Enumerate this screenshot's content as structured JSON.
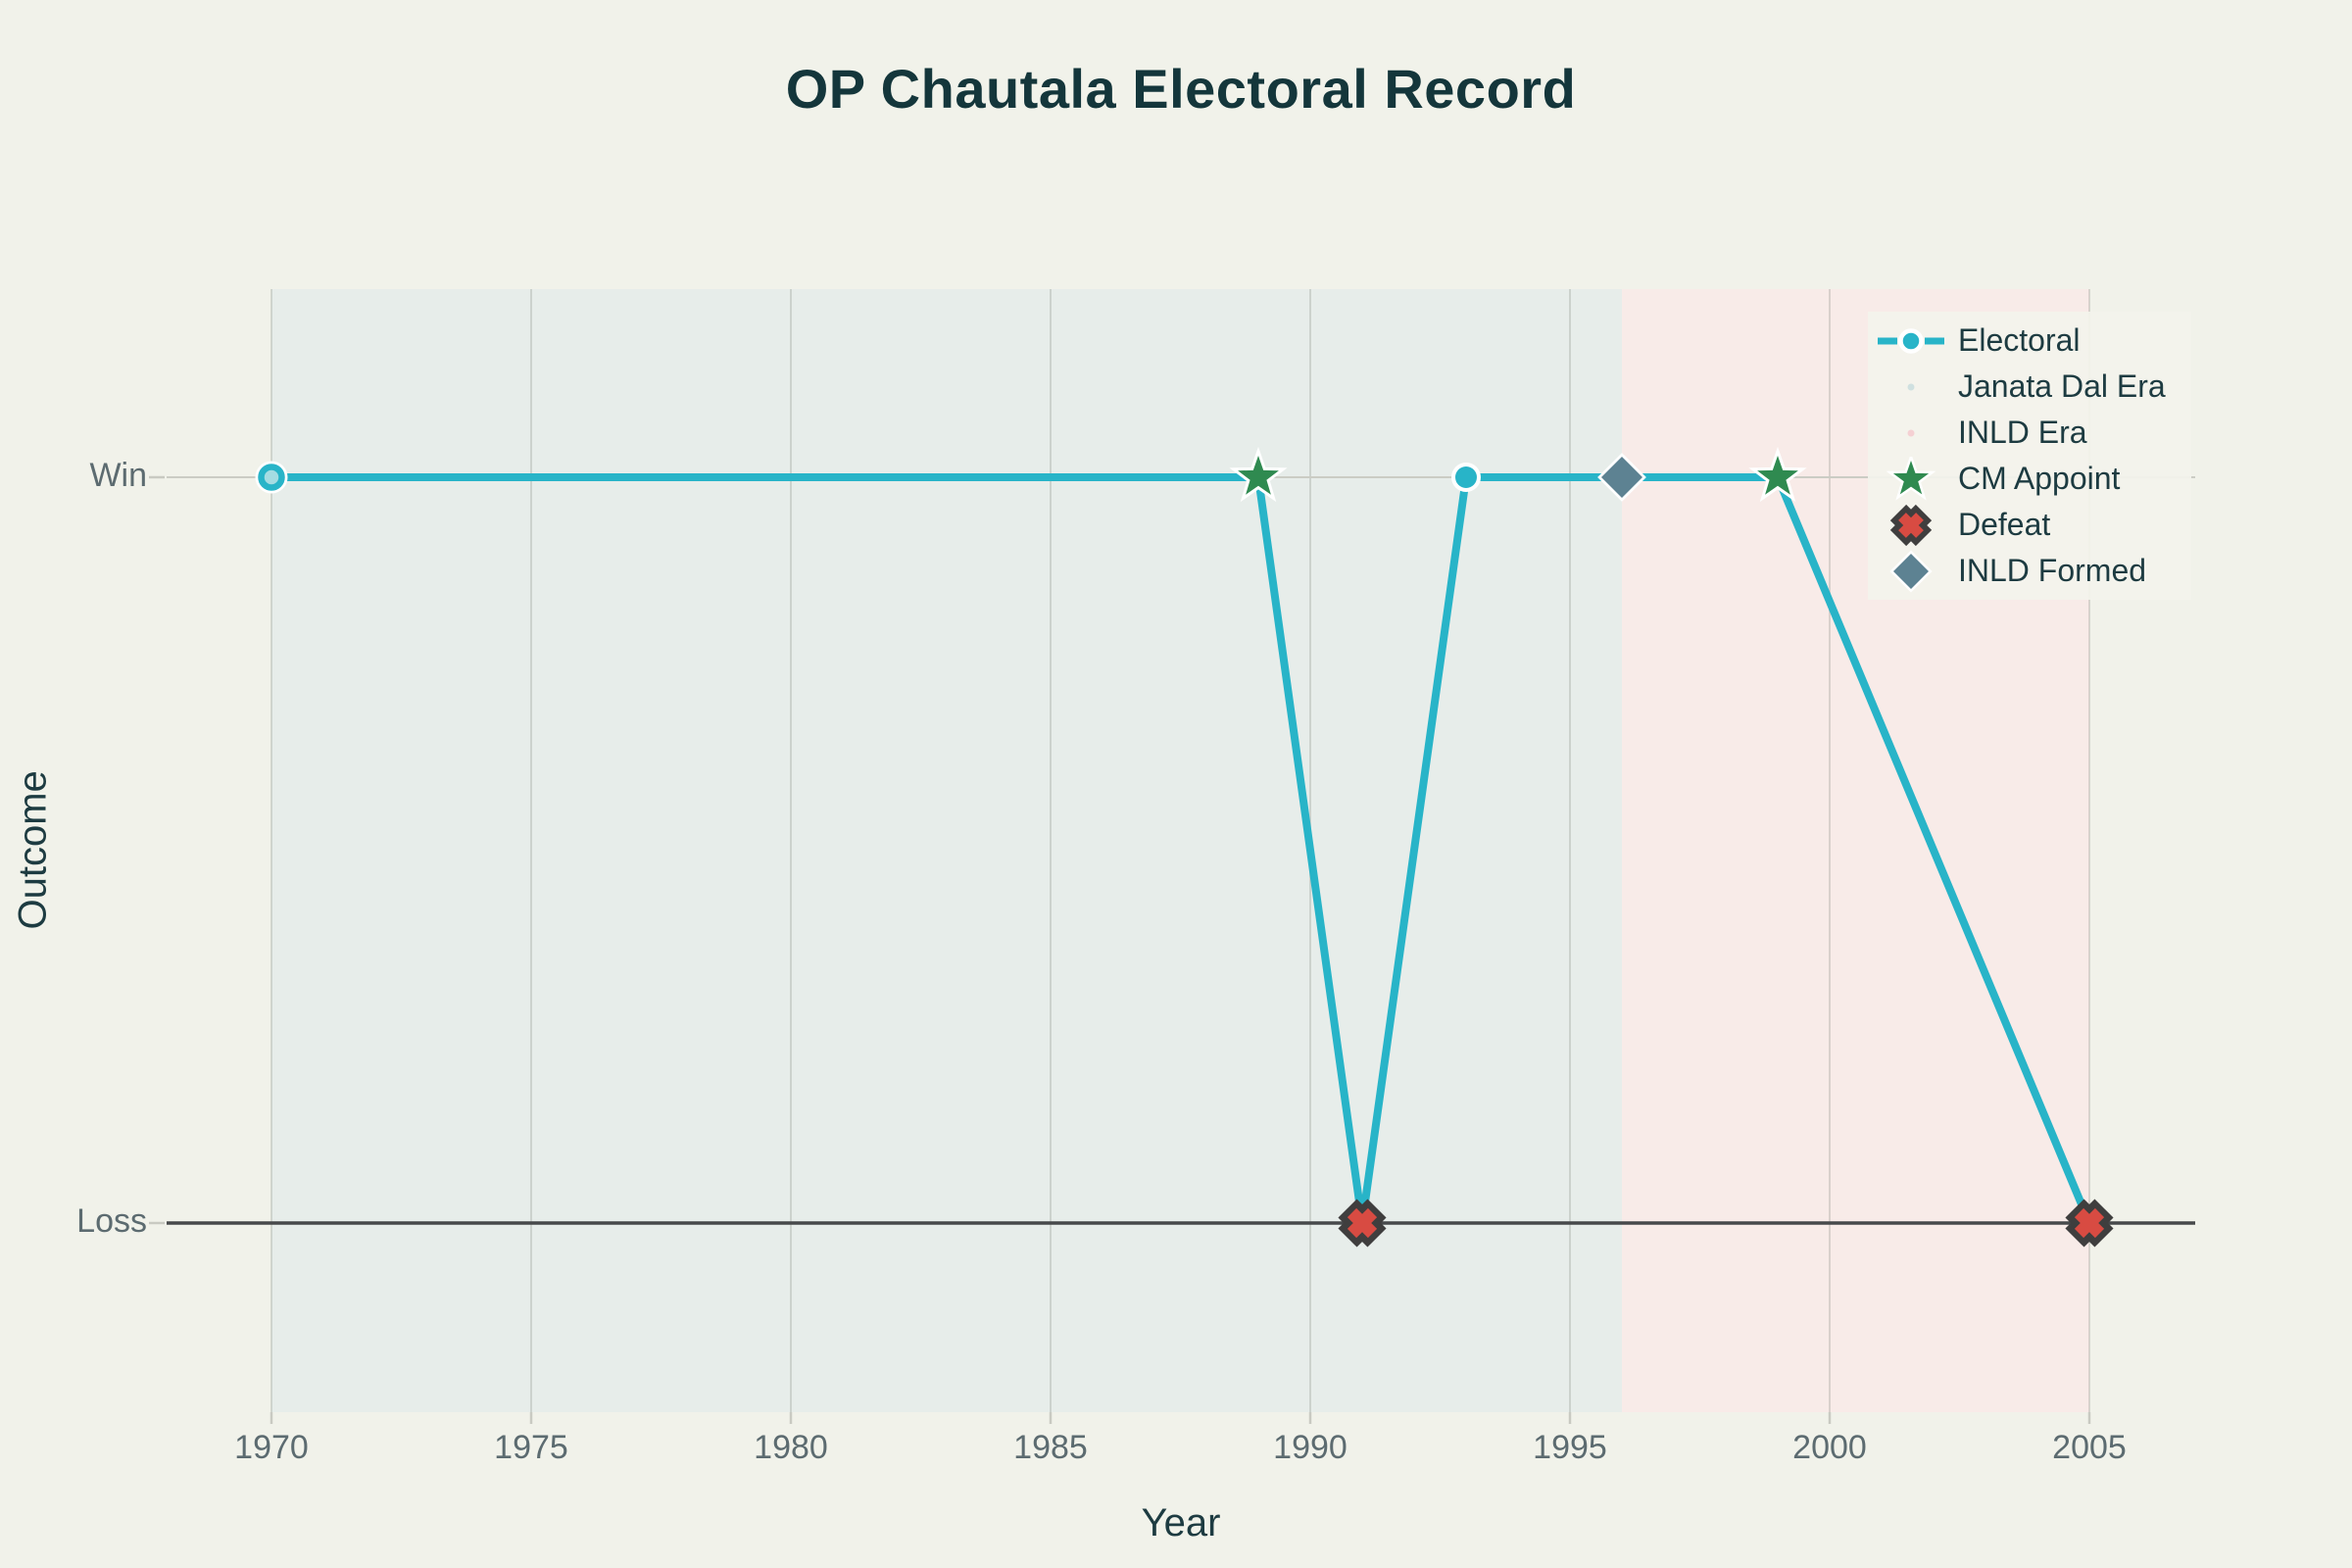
{
  "chart_data": {
    "type": "line",
    "title": "OP Chautala Electoral Record",
    "xlabel": "Year",
    "ylabel": "Outcome",
    "x_ticks": [
      1970,
      1975,
      1980,
      1985,
      1990,
      1995,
      2000,
      2005
    ],
    "y_ticks": [
      "Win",
      "Loss"
    ],
    "xlim": [
      1968,
      2007
    ],
    "grid": true,
    "legend_position": "upper right",
    "series": [
      {
        "name": "Electoral",
        "color": "#28b4c8",
        "points": [
          {
            "year": 1970,
            "outcome": "Win"
          },
          {
            "year": 1989,
            "outcome": "Win"
          },
          {
            "year": 1991,
            "outcome": "Loss"
          },
          {
            "year": 1993,
            "outcome": "Win"
          },
          {
            "year": 1999,
            "outcome": "Win"
          },
          {
            "year": 2005,
            "outcome": "Loss"
          }
        ]
      }
    ],
    "point_markers": [
      {
        "year": 1970,
        "outcome": "Win",
        "style": "open-circle"
      },
      {
        "year": 1993,
        "outcome": "Win",
        "style": "dot"
      }
    ],
    "annotations": [
      {
        "label": "CM Appoint",
        "marker": "star",
        "color": "#2f8a50",
        "year": 1989,
        "outcome": "Win"
      },
      {
        "label": "Defeat",
        "marker": "cross",
        "color": "#d84b42",
        "outline": "#3f3e3e",
        "year": 1991,
        "outcome": "Loss"
      },
      {
        "label": "INLD Formed",
        "marker": "diamond",
        "color": "#5d8292",
        "year": 1996,
        "outcome": "Win"
      },
      {
        "label": "CM Appoint",
        "marker": "star",
        "color": "#2f8a50",
        "year": 1999,
        "outcome": "Win"
      },
      {
        "label": "Defeat",
        "marker": "cross",
        "color": "#d84b42",
        "outline": "#3f3e3e",
        "year": 2005,
        "outcome": "Loss"
      }
    ],
    "eras": [
      {
        "name": "Janata Dal Era",
        "start": 1970,
        "end": 1996,
        "color": "#e7edea"
      },
      {
        "name": "INLD Era",
        "start": 1996,
        "end": 2005,
        "color": "#f8ebe8"
      }
    ]
  },
  "legend": {
    "items": [
      {
        "label": "Electoral",
        "marker": "line-dot",
        "color": "#28b4c8"
      },
      {
        "label": "Janata Dal Era",
        "marker": "small-dot",
        "color": "#cfe0e0"
      },
      {
        "label": "INLD Era",
        "marker": "small-dot",
        "color": "#f5d0d3"
      },
      {
        "label": "CM Appoint",
        "marker": "star",
        "color": "#2f8a50"
      },
      {
        "label": "Defeat",
        "marker": "cross",
        "color": "#d84b42",
        "outline": "#3f3e3e"
      },
      {
        "label": "INLD Formed",
        "marker": "diamond",
        "color": "#5d8292"
      }
    ]
  },
  "colors": {
    "background": "#f1f2ea",
    "title_text": "#14363b",
    "axis_title_text": "#1d3b41",
    "tick_text": "#5c6b70",
    "gridline": "#d2d3cb",
    "loss_axis_line": "#47494b",
    "line": "#28b4c8",
    "open_circle_inner": "#a5dce2",
    "janata_band": "#e7edea",
    "inld_band": "#f8ebe8"
  }
}
